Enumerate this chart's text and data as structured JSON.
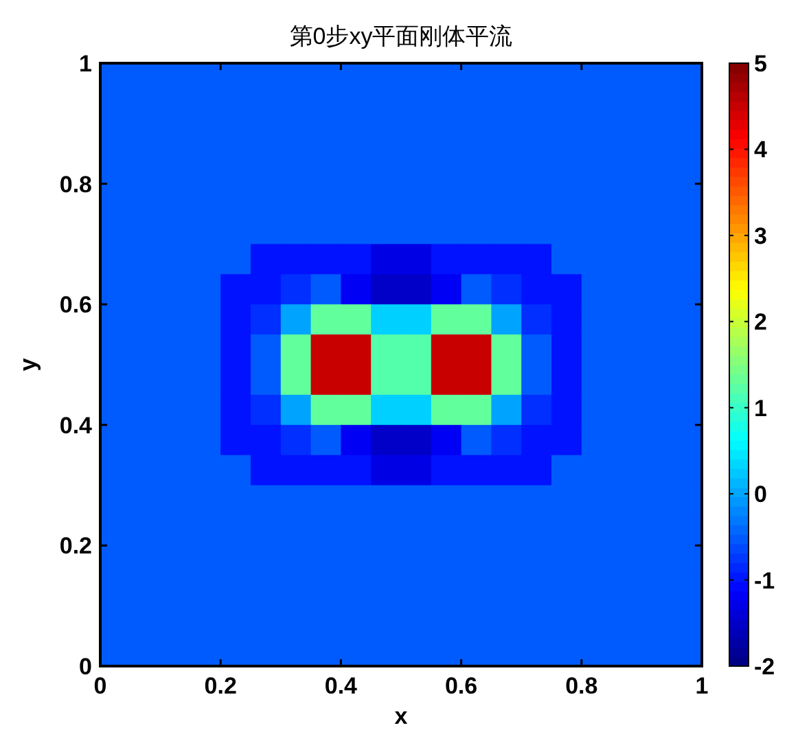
{
  "chart_data": {
    "type": "heatmap",
    "title": "第0步xy平面刚体平流",
    "xlabel": "x",
    "ylabel": "y",
    "x": [
      0.025,
      0.075,
      0.125,
      0.175,
      0.225,
      0.275,
      0.325,
      0.375,
      0.425,
      0.475,
      0.525,
      0.575,
      0.625,
      0.675,
      0.725,
      0.775,
      0.825,
      0.875,
      0.925,
      0.975
    ],
    "y": [
      0.975,
      0.925,
      0.875,
      0.825,
      0.775,
      0.725,
      0.675,
      0.625,
      0.575,
      0.525,
      0.475,
      0.425,
      0.375,
      0.325,
      0.275,
      0.225,
      0.175,
      0.125,
      0.075,
      0.025
    ],
    "xlim": [
      0,
      1
    ],
    "xticks": [
      0,
      0.2,
      0.4,
      0.6,
      0.8,
      1
    ],
    "ylim": [
      0,
      1
    ],
    "yticks": [
      0,
      0.2,
      0.4,
      0.6,
      0.8,
      1
    ],
    "clim": [
      -2,
      5
    ],
    "cticks": [
      -2,
      -1,
      0,
      1,
      2,
      3,
      4,
      5
    ],
    "cells": [
      [
        -0.5,
        -0.5,
        -0.5,
        -0.5,
        -0.5,
        -0.5,
        -0.5,
        -0.5,
        -0.5,
        -0.5,
        -0.5,
        -0.5,
        -0.5,
        -0.5,
        -0.5,
        -0.5,
        -0.5,
        -0.5,
        -0.5,
        -0.5
      ],
      [
        -0.5,
        -0.5,
        -0.5,
        -0.5,
        -0.5,
        -0.5,
        -0.5,
        -0.5,
        -0.5,
        -0.5,
        -0.5,
        -0.5,
        -0.5,
        -0.5,
        -0.5,
        -0.5,
        -0.5,
        -0.5,
        -0.5,
        -0.5
      ],
      [
        -0.5,
        -0.5,
        -0.5,
        -0.5,
        -0.5,
        -0.5,
        -0.5,
        -0.5,
        -0.5,
        -0.5,
        -0.5,
        -0.5,
        -0.5,
        -0.5,
        -0.5,
        -0.5,
        -0.5,
        -0.5,
        -0.5,
        -0.5
      ],
      [
        -0.5,
        -0.5,
        -0.5,
        -0.5,
        -0.5,
        -0.5,
        -0.5,
        -0.5,
        -0.5,
        -0.5,
        -0.5,
        -0.5,
        -0.5,
        -0.5,
        -0.5,
        -0.5,
        -0.5,
        -0.5,
        -0.5,
        -0.5
      ],
      [
        -0.5,
        -0.5,
        -0.5,
        -0.5,
        -0.5,
        -0.5,
        -0.5,
        -0.5,
        -0.5,
        -0.5,
        -0.5,
        -0.5,
        -0.5,
        -0.5,
        -0.5,
        -0.5,
        -0.5,
        -0.5,
        -0.5,
        -0.5
      ],
      [
        -0.5,
        -0.5,
        -0.5,
        -0.5,
        -0.5,
        -0.5,
        -0.5,
        -0.5,
        -0.5,
        -0.5,
        -0.5,
        -0.5,
        -0.5,
        -0.5,
        -0.5,
        -0.5,
        -0.5,
        -0.5,
        -0.5,
        -0.5
      ],
      [
        -0.5,
        -0.5,
        -0.5,
        -0.5,
        -0.5,
        -1,
        -1,
        -1,
        -1,
        -1.3,
        -1.3,
        -1,
        -1,
        -1,
        -1,
        -0.5,
        -0.5,
        -0.5,
        -0.5,
        -0.5
      ],
      [
        -0.5,
        -0.5,
        -0.5,
        -0.5,
        -1,
        -1,
        -0.8,
        -0.5,
        -1.2,
        -1.5,
        -1.5,
        -1.2,
        -0.5,
        -0.8,
        -1,
        -1,
        -0.5,
        -0.5,
        -0.5,
        -0.5
      ],
      [
        -0.5,
        -0.5,
        -0.5,
        -0.5,
        -1,
        -0.8,
        0,
        1.3,
        1.3,
        0.3,
        0.3,
        1.3,
        1.3,
        0,
        -0.8,
        -1,
        -0.5,
        -0.5,
        -0.5,
        -0.5
      ],
      [
        -0.5,
        -0.5,
        -0.5,
        -0.5,
        -1,
        -0.5,
        1.3,
        4.5,
        4.5,
        1.2,
        1.2,
        4.5,
        4.5,
        1.3,
        -0.5,
        -1,
        -0.5,
        -0.5,
        -0.5,
        -0.5
      ],
      [
        -0.5,
        -0.5,
        -0.5,
        -0.5,
        -1,
        -0.5,
        1.3,
        4.5,
        4.5,
        1.2,
        1.2,
        4.5,
        4.5,
        1.3,
        -0.5,
        -1,
        -0.5,
        -0.5,
        -0.5,
        -0.5
      ],
      [
        -0.5,
        -0.5,
        -0.5,
        -0.5,
        -1,
        -0.8,
        0,
        1.3,
        1.3,
        0.3,
        0.3,
        1.3,
        1.3,
        0,
        -0.8,
        -1,
        -0.5,
        -0.5,
        -0.5,
        -0.5
      ],
      [
        -0.5,
        -0.5,
        -0.5,
        -0.5,
        -1,
        -1,
        -0.8,
        -0.5,
        -1.2,
        -1.5,
        -1.5,
        -1.2,
        -0.5,
        -0.8,
        -1,
        -1,
        -0.5,
        -0.5,
        -0.5,
        -0.5
      ],
      [
        -0.5,
        -0.5,
        -0.5,
        -0.5,
        -0.5,
        -1,
        -1,
        -1,
        -1,
        -1.3,
        -1.3,
        -1,
        -1,
        -1,
        -1,
        -0.5,
        -0.5,
        -0.5,
        -0.5,
        -0.5
      ],
      [
        -0.5,
        -0.5,
        -0.5,
        -0.5,
        -0.5,
        -0.5,
        -0.5,
        -0.5,
        -0.5,
        -0.5,
        -0.5,
        -0.5,
        -0.5,
        -0.5,
        -0.5,
        -0.5,
        -0.5,
        -0.5,
        -0.5,
        -0.5
      ],
      [
        -0.5,
        -0.5,
        -0.5,
        -0.5,
        -0.5,
        -0.5,
        -0.5,
        -0.5,
        -0.5,
        -0.5,
        -0.5,
        -0.5,
        -0.5,
        -0.5,
        -0.5,
        -0.5,
        -0.5,
        -0.5,
        -0.5,
        -0.5
      ],
      [
        -0.5,
        -0.5,
        -0.5,
        -0.5,
        -0.5,
        -0.5,
        -0.5,
        -0.5,
        -0.5,
        -0.5,
        -0.5,
        -0.5,
        -0.5,
        -0.5,
        -0.5,
        -0.5,
        -0.5,
        -0.5,
        -0.5,
        -0.5
      ],
      [
        -0.5,
        -0.5,
        -0.5,
        -0.5,
        -0.5,
        -0.5,
        -0.5,
        -0.5,
        -0.5,
        -0.5,
        -0.5,
        -0.5,
        -0.5,
        -0.5,
        -0.5,
        -0.5,
        -0.5,
        -0.5,
        -0.5,
        -0.5
      ],
      [
        -0.5,
        -0.5,
        -0.5,
        -0.5,
        -0.5,
        -0.5,
        -0.5,
        -0.5,
        -0.5,
        -0.5,
        -0.5,
        -0.5,
        -0.5,
        -0.5,
        -0.5,
        -0.5,
        -0.5,
        -0.5,
        -0.5,
        -0.5
      ],
      [
        -0.5,
        -0.5,
        -0.5,
        -0.5,
        -0.5,
        -0.5,
        -0.5,
        -0.5,
        -0.5,
        -0.5,
        -0.5,
        -0.5,
        -0.5,
        -0.5,
        -0.5,
        -0.5,
        -0.5,
        -0.5,
        -0.5,
        -0.5
      ]
    ]
  }
}
